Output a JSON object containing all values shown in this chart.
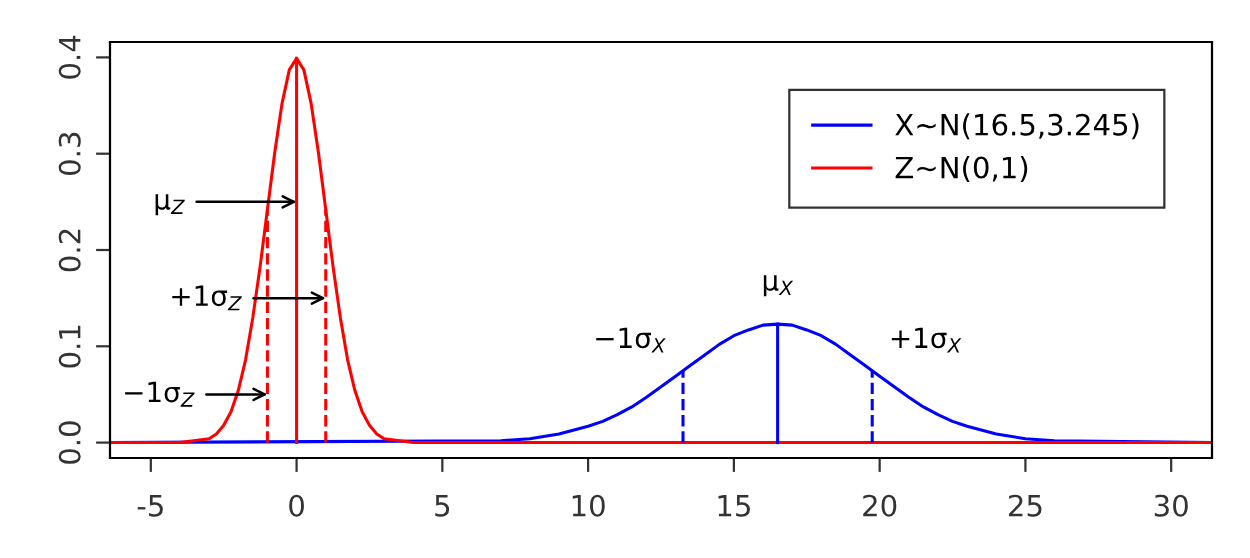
{
  "chart_data": {
    "type": "line",
    "xlim": [
      -6.4,
      31.4
    ],
    "ylim": [
      -0.016,
      0.416
    ],
    "xticks": [
      -5,
      0,
      5,
      10,
      15,
      20,
      25,
      30
    ],
    "yticks": [
      {
        "value": 0,
        "label": "0.0"
      },
      0.1,
      0.2,
      0.3,
      0.4
    ],
    "grid": false,
    "legend": "top right",
    "marker": "none",
    "series": [
      {
        "name": "X~N(16.5,3.245)",
        "color": "#0000ff",
        "line_style": "solid",
        "x": [
          -6.4,
          7,
          8,
          9,
          10,
          10.5,
          11,
          11.5,
          12,
          12.5,
          13,
          13.5,
          14,
          14.5,
          15,
          15.5,
          16,
          16.5,
          17,
          17.5,
          18,
          18.5,
          19,
          19.5,
          20,
          20.5,
          21,
          21.5,
          22,
          22.5,
          23,
          24,
          25,
          26,
          31.4
        ],
        "values": [
          0,
          0.002,
          0.004,
          0.009,
          0.017,
          0.022,
          0.029,
          0.037,
          0.047,
          0.058,
          0.069,
          0.08,
          0.091,
          0.102,
          0.111,
          0.117,
          0.122,
          0.123,
          0.122,
          0.117,
          0.111,
          0.102,
          0.091,
          0.08,
          0.069,
          0.058,
          0.047,
          0.037,
          0.029,
          0.022,
          0.017,
          0.009,
          0.004,
          0.002,
          0
        ]
      },
      {
        "name": "Z~N(0,1)",
        "color": "#ff0000",
        "line_style": "solid",
        "x": [
          -6.4,
          -4,
          -3,
          -2.75,
          -2.5,
          -2.25,
          -2,
          -1.75,
          -1.5,
          -1.25,
          -1,
          -0.75,
          -0.5,
          -0.25,
          0,
          0.25,
          0.5,
          0.75,
          1,
          1.25,
          1.5,
          1.75,
          2,
          2.25,
          2.5,
          2.75,
          3,
          4,
          31.4
        ],
        "values": [
          0,
          0,
          0.004,
          0.009,
          0.018,
          0.032,
          0.054,
          0.086,
          0.13,
          0.183,
          0.242,
          0.301,
          0.352,
          0.387,
          0.399,
          0.387,
          0.352,
          0.301,
          0.242,
          0.183,
          0.13,
          0.086,
          0.054,
          0.032,
          0.018,
          0.009,
          0.004,
          0,
          0
        ]
      },
      {
        "color": "#ff0000",
        "line_style": "solid",
        "x": [
          0,
          0
        ],
        "values": [
          0,
          0.399
        ]
      },
      {
        "color": "#ff0000",
        "line_style": "dashed",
        "x": [
          -1,
          -1
        ],
        "values": [
          0,
          0.242
        ]
      },
      {
        "color": "#ff0000",
        "line_style": "dashed",
        "x": [
          1,
          1
        ],
        "values": [
          0,
          0.242
        ]
      },
      {
        "color": "#0000ff",
        "line_style": "solid",
        "x": [
          16.5,
          16.5
        ],
        "values": [
          0,
          0.123
        ]
      },
      {
        "color": "#0000ff",
        "line_style": "dashed",
        "x": [
          13.255,
          13.255
        ],
        "values": [
          0,
          0.075
        ]
      },
      {
        "color": "#0000ff",
        "line_style": "dashed",
        "x": [
          19.745,
          19.745
        ],
        "values": [
          0,
          0.075
        ]
      }
    ],
    "annotations": [
      {
        "text": "μ$_{Z}$",
        "x": 0,
        "y": 0.25
      },
      {
        "text": "+1σ$_{Z}$",
        "x": 1,
        "y": 0.15
      },
      {
        "text": "−1σ$_{Z}$",
        "x": -1,
        "y": 0.05
      },
      {
        "text": "μ$_{X}$",
        "x": 16.5,
        "y": 0.123
      },
      {
        "text": "−1σ$_{X}$",
        "x": 13.255,
        "y": 0.075
      },
      {
        "text": "+1σ$_{X}$",
        "x": 19.745,
        "y": 0.075
      }
    ]
  }
}
